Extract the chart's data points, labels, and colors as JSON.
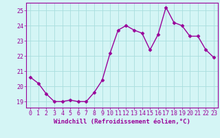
{
  "x": [
    0,
    1,
    2,
    3,
    4,
    5,
    6,
    7,
    8,
    9,
    10,
    11,
    12,
    13,
    14,
    15,
    16,
    17,
    18,
    19,
    20,
    21,
    22,
    23
  ],
  "y": [
    20.6,
    20.2,
    19.5,
    19.0,
    19.0,
    19.1,
    19.0,
    19.0,
    19.6,
    20.4,
    22.2,
    23.7,
    24.0,
    23.7,
    23.5,
    22.4,
    23.4,
    25.2,
    24.2,
    24.0,
    23.3,
    23.3,
    22.4,
    21.9
  ],
  "line_color": "#990099",
  "marker": "D",
  "marker_size": 2.5,
  "linewidth": 1.0,
  "bg_color": "#d4f5f5",
  "grid_color": "#a8dede",
  "xlabel": "Windchill (Refroidissement éolien,°C)",
  "xlabel_fontsize": 6.5,
  "tick_fontsize": 6.0,
  "ylim": [
    18.6,
    25.5
  ],
  "xlim": [
    -0.5,
    23.5
  ],
  "yticks": [
    19,
    20,
    21,
    22,
    23,
    24,
    25
  ],
  "xtick_labels": [
    "0",
    "1",
    "2",
    "3",
    "4",
    "5",
    "6",
    "7",
    "8",
    "9",
    "10",
    "11",
    "12",
    "13",
    "14",
    "15",
    "16",
    "17",
    "18",
    "19",
    "20",
    "21",
    "22",
    "23"
  ]
}
